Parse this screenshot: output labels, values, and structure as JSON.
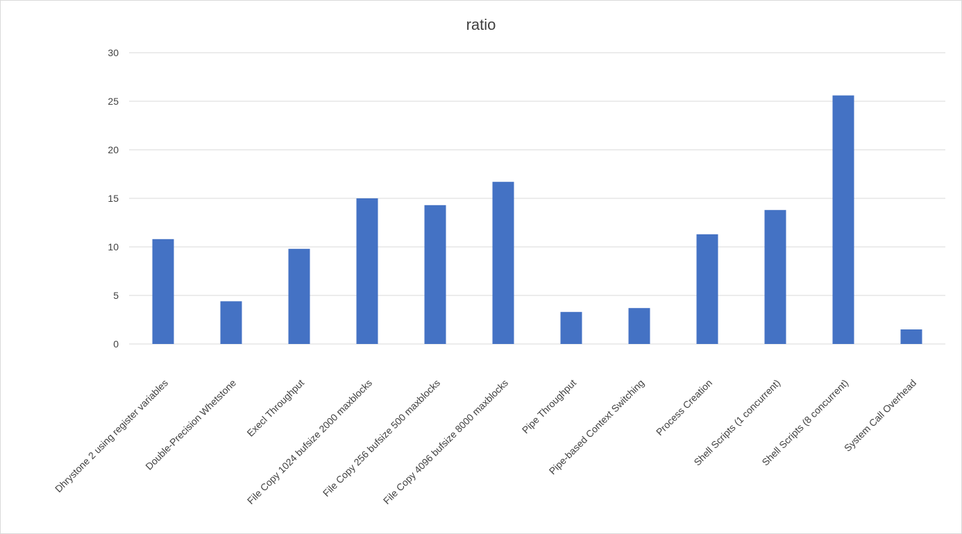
{
  "chart_data": {
    "type": "bar",
    "title": "ratio",
    "xlabel": "",
    "ylabel": "",
    "ylim": [
      0,
      30
    ],
    "yticks": [
      0,
      5,
      10,
      15,
      20,
      25,
      30
    ],
    "grid": true,
    "legend": "none",
    "color": "#4472c4",
    "categories": [
      "Dhrystone 2 using register variables",
      "Double-Precision Whetstone",
      "Execl Throughput",
      "File Copy 1024 bufsize 2000 maxblocks",
      "File Copy 256 bufsize 500 maxblocks",
      "File Copy 4096 bufsize 8000 maxblocks",
      "Pipe Throughput",
      "Pipe-based Context Switching",
      "Process Creation",
      "Shell Scripts (1 concurrent)",
      "Shell Scripts (8 concurrent)",
      "System Call Overhead"
    ],
    "values": [
      10.8,
      4.4,
      9.8,
      15.0,
      14.3,
      16.7,
      3.3,
      3.7,
      11.3,
      13.8,
      25.6,
      1.5
    ]
  }
}
